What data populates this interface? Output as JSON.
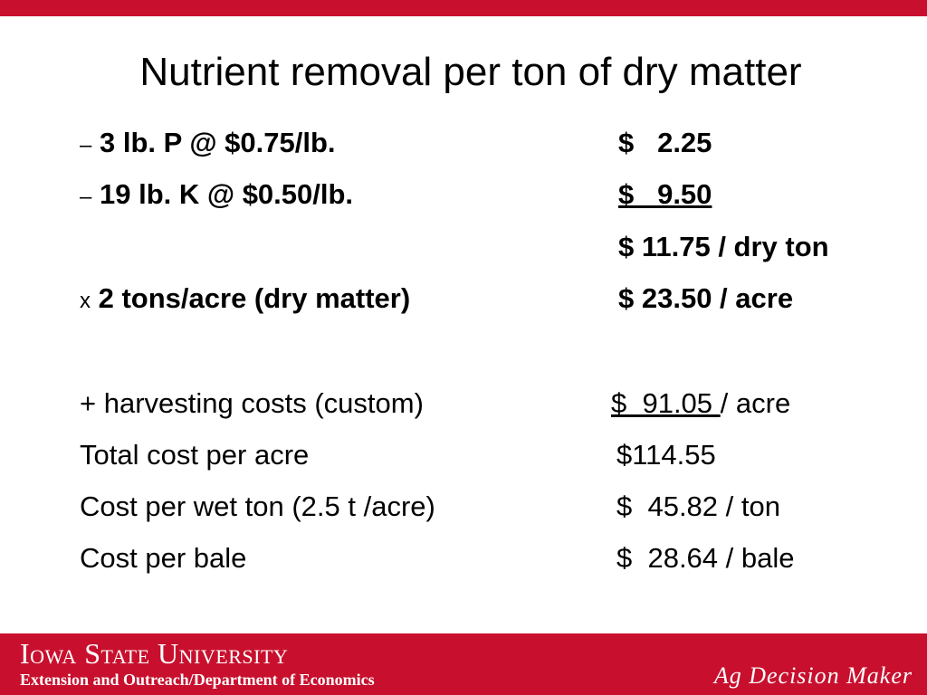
{
  "title": "Nutrient removal per ton of dry matter",
  "rows": [
    {
      "bullet": "–",
      "left": "3 lb. P @ $0.75/lb.",
      "right": "$   2.25",
      "bold": true
    },
    {
      "bullet": "–",
      "left": "19 lb. K @ $0.50/lb.",
      "right": "$   9.50",
      "bold": true,
      "underline": true
    },
    {
      "right": "$ 11.75 / dry ton",
      "bold": true
    },
    {
      "bullet": "x",
      "left": "2 tons/acre (dry matter)",
      "right": "$ 23.50 / acre",
      "bold": true
    },
    {
      "left": "+ harvesting costs (custom)",
      "right": "$  91.05 ",
      "right_suffix": "/ acre",
      "underline": true
    },
    {
      "left": "Total cost per acre",
      "right": "$114.55"
    },
    {
      "left": "Cost per wet ton (2.5 t /acre)",
      "right": "$  45.82 / ton"
    },
    {
      "left": "Cost per bale",
      "right": "$  28.64 / bale"
    }
  ],
  "footer": {
    "university": "Iowa State University",
    "department": "Extension and Outreach/Department of Economics",
    "brand": "Ag Decision Maker"
  }
}
